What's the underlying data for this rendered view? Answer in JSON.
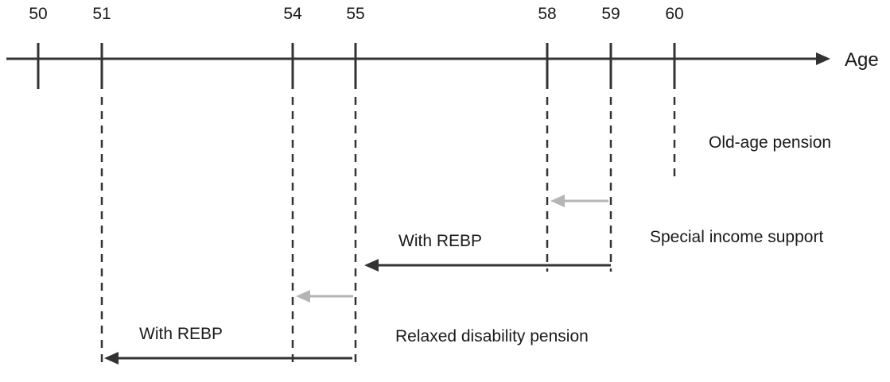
{
  "axis": {
    "label": "Age",
    "color": "#333333",
    "ticks": [
      50,
      51,
      54,
      55,
      58,
      59,
      60
    ]
  },
  "colors": {
    "dark": "#333333",
    "light": "#b5b5b5"
  },
  "labels": {
    "old_age": "Old-age pension",
    "special_income": "Special income support",
    "with_rebp_special": "With REBP",
    "disability": "Relaxed disability pension",
    "with_rebp_disability": "With REBP"
  },
  "arrows": [
    {
      "name": "special-income-light-arrow",
      "from_age": 59,
      "to_age": 58,
      "shade": "light"
    },
    {
      "name": "special-income-rebp-arrow",
      "from_age": 59,
      "to_age": 55,
      "shade": "dark"
    },
    {
      "name": "disability-light-arrow",
      "from_age": 55,
      "to_age": 54,
      "shade": "light"
    },
    {
      "name": "disability-rebp-arrow",
      "from_age": 55,
      "to_age": 51,
      "shade": "dark"
    }
  ]
}
